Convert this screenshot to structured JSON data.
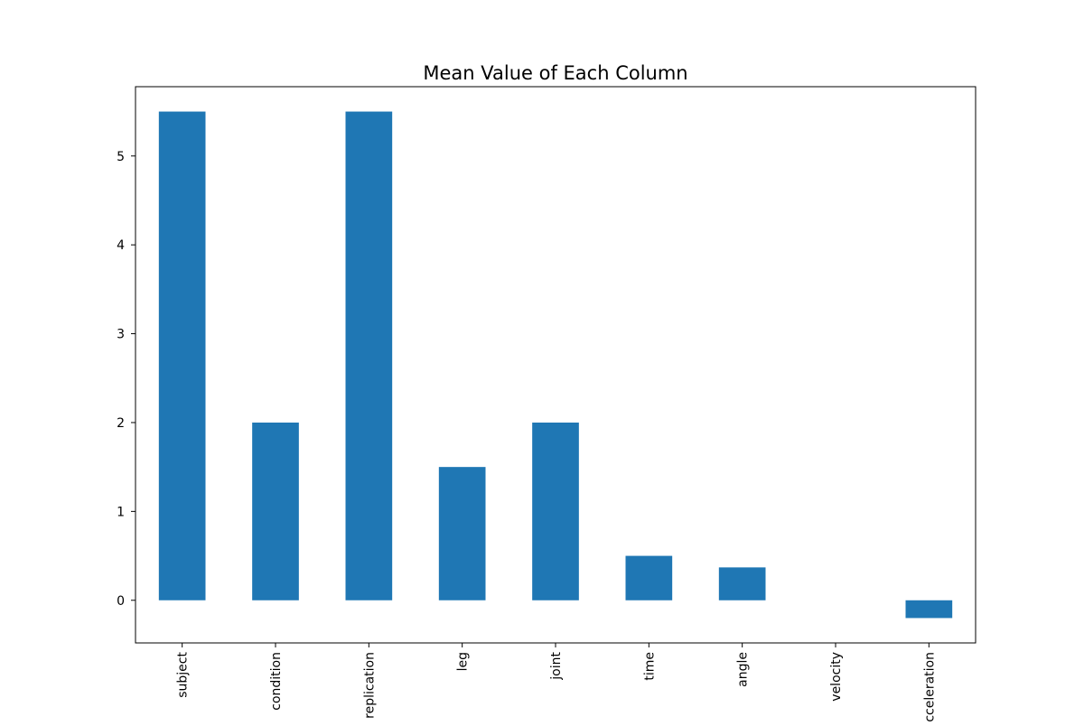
{
  "chart_data": {
    "type": "bar",
    "title": "Mean Value of Each Column",
    "xlabel": "",
    "ylabel": "",
    "categories": [
      "subject",
      "condition",
      "replication",
      "leg",
      "joint",
      "time",
      "angle",
      "velocity",
      "acceleration"
    ],
    "values": [
      5.5,
      2.0,
      5.5,
      1.5,
      2.0,
      0.5,
      0.37,
      0.0,
      -0.2
    ],
    "ylim": [
      -0.48,
      5.78
    ],
    "yticks": [
      "0",
      "1",
      "2",
      "3",
      "4",
      "5"
    ],
    "grid": false,
    "legend": "none",
    "bar_color": "#1f77b4"
  }
}
